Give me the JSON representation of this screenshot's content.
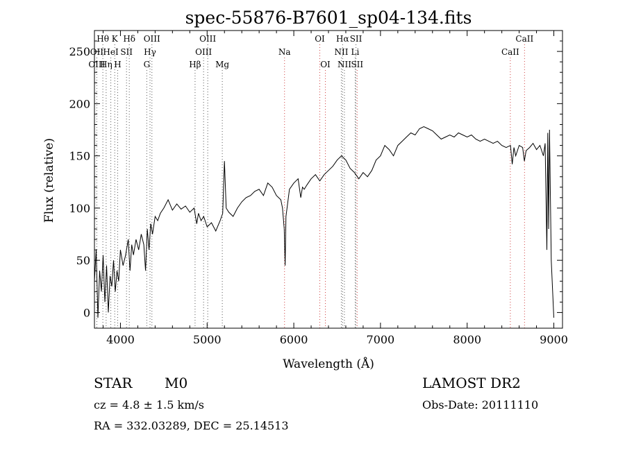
{
  "chart_data": {
    "type": "line",
    "title": "spec-55876-B7601_sp04-134.fits",
    "xlabel": "Wavelength (Å)",
    "ylabel": "Flux (relative)",
    "xlim": [
      3700,
      9100
    ],
    "ylim": [
      -15,
      270
    ],
    "xticks": [
      4000,
      5000,
      6000,
      7000,
      8000,
      9000
    ],
    "yticks": [
      0,
      50,
      100,
      150,
      200,
      250
    ],
    "grid": false,
    "series": [
      {
        "x": [
          3700,
          3720,
          3740,
          3760,
          3780,
          3800,
          3820,
          3840,
          3860,
          3880,
          3900,
          3920,
          3940,
          3960,
          3980,
          4000,
          4030,
          4060,
          4090,
          4110,
          4130,
          4150,
          4180,
          4210,
          4240,
          4270,
          4290,
          4310,
          4330,
          4350,
          4370,
          4400,
          4430,
          4460,
          4500,
          4550,
          4600,
          4650,
          4700,
          4750,
          4800,
          4850,
          4880,
          4900,
          4930,
          4960,
          5000,
          5050,
          5100,
          5150,
          5180,
          5200,
          5220,
          5250,
          5300,
          5350,
          5400,
          5450,
          5500,
          5550,
          5600,
          5650,
          5700,
          5750,
          5800,
          5850,
          5870,
          5890,
          5900,
          5910,
          5930,
          5950,
          6000,
          6050,
          6080,
          6100,
          6120,
          6150,
          6200,
          6250,
          6300,
          6350,
          6400,
          6450,
          6500,
          6550,
          6600,
          6650,
          6700,
          6750,
          6800,
          6850,
          6900,
          6950,
          7000,
          7050,
          7100,
          7150,
          7200,
          7250,
          7300,
          7350,
          7400,
          7450,
          7500,
          7550,
          7600,
          7650,
          7700,
          7750,
          7800,
          7850,
          7900,
          7950,
          8000,
          8050,
          8100,
          8150,
          8200,
          8250,
          8300,
          8350,
          8400,
          8450,
          8500,
          8520,
          8540,
          8560,
          8600,
          8640,
          8660,
          8680,
          8720,
          8760,
          8800,
          8840,
          8880,
          8900,
          8920,
          8930,
          8940,
          8950,
          8970,
          9000
        ],
        "y": [
          30,
          60,
          -5,
          40,
          20,
          55,
          10,
          45,
          0,
          35,
          25,
          50,
          20,
          40,
          30,
          60,
          45,
          55,
          70,
          40,
          65,
          55,
          70,
          60,
          75,
          65,
          40,
          80,
          60,
          85,
          75,
          92,
          88,
          95,
          100,
          108,
          98,
          104,
          99,
          102,
          96,
          100,
          85,
          95,
          88,
          92,
          82,
          86,
          78,
          88,
          95,
          145,
          100,
          96,
          92,
          100,
          106,
          110,
          112,
          116,
          118,
          112,
          124,
          120,
          112,
          108,
          100,
          80,
          45,
          92,
          105,
          118,
          124,
          128,
          110,
          120,
          118,
          122,
          128,
          132,
          126,
          132,
          136,
          140,
          146,
          150,
          146,
          138,
          134,
          128,
          134,
          130,
          136,
          146,
          150,
          160,
          156,
          150,
          160,
          164,
          168,
          172,
          170,
          176,
          178,
          176,
          174,
          170,
          166,
          168,
          170,
          168,
          172,
          170,
          168,
          170,
          166,
          164,
          166,
          164,
          162,
          164,
          160,
          158,
          160,
          142,
          158,
          150,
          160,
          158,
          145,
          155,
          158,
          162,
          156,
          160,
          150,
          162,
          60,
          172,
          80,
          175,
          50,
          -5
        ]
      }
    ],
    "lines": {
      "top_row": [
        {
          "label": "Hθ",
          "w": 3797
        },
        {
          "label": "K",
          "w": 3934
        },
        {
          "label": "Hδ",
          "w": 4102
        },
        {
          "label": "OIII",
          "w": 4363
        },
        {
          "label": "OIII",
          "w": 5007
        },
        {
          "label": "OI",
          "w": 6300
        },
        {
          "label": "Hα",
          "w": 6563
        },
        {
          "label": "SII",
          "w": 6717
        },
        {
          "label": "CaII",
          "w": 8662
        }
      ],
      "middle_row": [
        {
          "label": "OII",
          "w": 3727
        },
        {
          "label": "HeI",
          "w": 3889
        },
        {
          "label": "SII",
          "w": 4070
        },
        {
          "label": "Hγ",
          "w": 4341
        },
        {
          "label": "OIII",
          "w": 4959
        },
        {
          "label": "Na",
          "w": 5893
        },
        {
          "label": "NII",
          "w": 6548
        },
        {
          "label": "Li",
          "w": 6708
        },
        {
          "label": "CaII",
          "w": 8498
        }
      ],
      "bottom_row": [
        {
          "label": "OIII",
          "w": 3727
        },
        {
          "label": "Hη",
          "w": 3835
        },
        {
          "label": "H",
          "w": 3968
        },
        {
          "label": "G",
          "w": 4304
        },
        {
          "label": "Hβ",
          "w": 4861
        },
        {
          "label": "Mg",
          "w": 5175
        },
        {
          "label": "OI",
          "w": 6364
        },
        {
          "label": "NII",
          "w": 6584
        },
        {
          "label": "SII",
          "w": 6731
        }
      ]
    }
  },
  "info": {
    "class": "STAR",
    "subclass": "M0",
    "cz": "cz = 4.8 ± 1.5 km/s",
    "coords": "RA = 332.03289, DEC =  25.14513",
    "survey": "LAMOST DR2",
    "obsdate": "Obs-Date: 20111110"
  }
}
